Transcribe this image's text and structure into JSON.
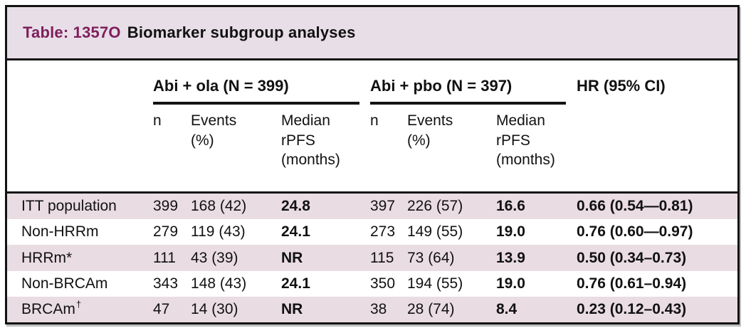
{
  "title": {
    "prefix": "Table: 1357O",
    "text": "Biomarker subgroup analyses"
  },
  "columns": {
    "group1": "Abi + ola (N = 399)",
    "group2": "Abi + pbo (N = 397)",
    "hr": "HR (95% CI)",
    "sub_n": "n",
    "sub_events": "Events\n(%)",
    "sub_median": "Median\nrPFS\n(months)"
  },
  "rows": [
    {
      "label": "ITT population",
      "sup": "",
      "g1_n": "399",
      "g1_events": "168 (42)",
      "g1_median": "24.8",
      "g2_n": "397",
      "g2_events": "226 (57)",
      "g2_median": "16.6",
      "hr": "0.66 (0.54—0.81)"
    },
    {
      "label": "Non-HRRm",
      "sup": "",
      "g1_n": "279",
      "g1_events": "119 (43)",
      "g1_median": "24.1",
      "g2_n": "273",
      "g2_events": "149 (55)",
      "g2_median": "19.0",
      "hr": "0.76 (0.60—0.97)"
    },
    {
      "label": "HRRm*",
      "sup": "",
      "g1_n": "111",
      "g1_events": "43 (39)",
      "g1_median": "NR",
      "g2_n": "115",
      "g2_events": "73 (64)",
      "g2_median": "13.9",
      "hr": "0.50 (0.34–0.73)"
    },
    {
      "label": "Non-BRCAm",
      "sup": "",
      "g1_n": "343",
      "g1_events": "148 (43)",
      "g1_median": "24.1",
      "g2_n": "350",
      "g2_events": "194 (55)",
      "g2_median": "19.0",
      "hr": "0.76 (0.61–0.94)"
    },
    {
      "label": "BRCAm",
      "sup": "†",
      "g1_n": "47",
      "g1_events": "14 (30)",
      "g1_median": "NR",
      "g2_n": "38",
      "g2_events": "28 (74)",
      "g2_median": "8.4",
      "hr": "0.23 (0.12–0.43)"
    }
  ],
  "colors": {
    "title_text": "#7e1f5c",
    "band_bg": "#e8dee7",
    "row_bg": "#eadce3",
    "border": "#131313",
    "text": "#111111"
  }
}
